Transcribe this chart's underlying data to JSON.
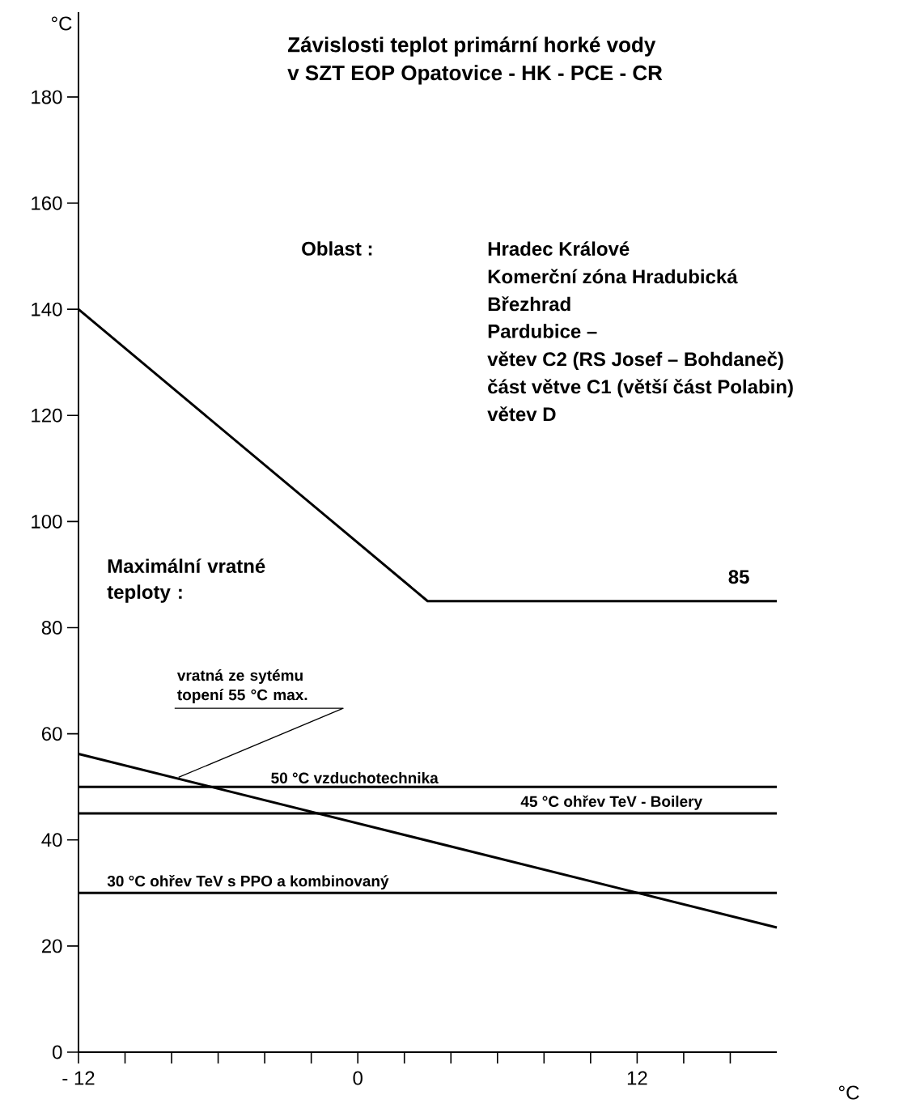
{
  "chart_data": {
    "type": "line",
    "title": "Závislosti teplot primární horké vody",
    "subtitle": "v SZT EOP Opatovice - HK - PCE - CR",
    "xlabel": "°C",
    "ylabel": "°C",
    "xlim": [
      -12,
      18
    ],
    "ylim": [
      0,
      196
    ],
    "xticks": [
      {
        "value": -12,
        "label": "- 12"
      },
      {
        "value": -10,
        "label": null
      },
      {
        "value": -8,
        "label": null
      },
      {
        "value": -6,
        "label": null
      },
      {
        "value": -4,
        "label": null
      },
      {
        "value": -2,
        "label": null
      },
      0,
      {
        "value": 2,
        "label": null
      },
      {
        "value": 4,
        "label": null
      },
      {
        "value": 6,
        "label": null
      },
      {
        "value": 8,
        "label": null
      },
      {
        "value": 10,
        "label": null
      },
      12,
      {
        "value": 14,
        "label": null
      },
      {
        "value": 16,
        "label": null
      }
    ],
    "yticks": [
      0,
      20,
      40,
      60,
      80,
      100,
      120,
      140,
      160,
      180
    ],
    "marker": "none",
    "line_style": "solid",
    "series": [
      {
        "x": [
          -12,
          3,
          18
        ],
        "values": [
          140,
          85,
          85
        ],
        "color": "#000000",
        "value_labels": [
          null,
          null,
          "85"
        ]
      },
      {
        "x": [
          -12,
          18
        ],
        "values": [
          56.2,
          23.5
        ],
        "color": "#000000"
      }
    ],
    "ref_lines": [
      {
        "axis": "y",
        "value": 50,
        "label": "50 °C  vzduchotechnika",
        "color": "#000000"
      },
      {
        "axis": "y",
        "value": 45,
        "label": "45 °C ohřev TeV - Boilery",
        "color": "#000000"
      },
      {
        "axis": "y",
        "value": 30,
        "label": "30 °C ohřev TeV s PPO a kombinovaný",
        "color": "#000000"
      }
    ],
    "annotations": [
      {
        "text": "vratná ze sytému topení 55 °C max.",
        "x": -7.7,
        "y": 51.8
      },
      "Maximální vratné teploty :",
      "Oblast :",
      "Hradec Králové",
      "Komerční zóna Hradubická",
      "Březhrad",
      "Pardubice –",
      "větev C2 (RS Josef – Bohdaneč)",
      "část větve C1 (větší část Polabin)",
      "větev D"
    ]
  }
}
